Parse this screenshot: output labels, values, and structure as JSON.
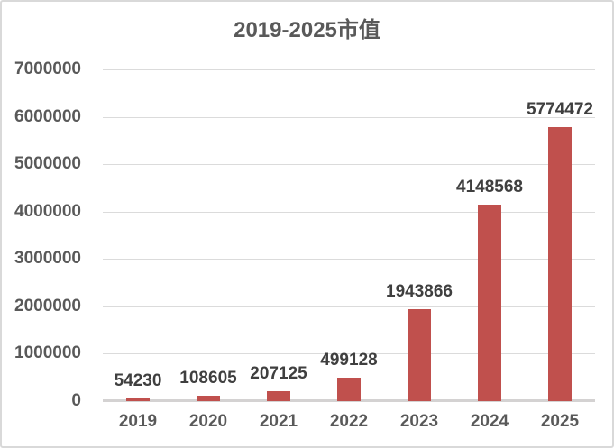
{
  "chart_data": {
    "type": "bar",
    "title": "2019-2025市值",
    "categories": [
      "2019",
      "2020",
      "2021",
      "2022",
      "2023",
      "2024",
      "2025"
    ],
    "values": [
      54230,
      108605,
      207125,
      499128,
      1943866,
      4148568,
      5774472
    ],
    "data_labels": [
      "54230",
      "108605",
      "207125",
      "499128",
      "1943866",
      "4148568",
      "5774472"
    ],
    "xlabel": "",
    "ylabel": "",
    "ylim": [
      0,
      7000000
    ],
    "yticks": [
      0,
      1000000,
      2000000,
      3000000,
      4000000,
      5000000,
      6000000,
      7000000
    ],
    "ytick_labels": [
      "0",
      "1000000",
      "2000000",
      "3000000",
      "4000000",
      "5000000",
      "6000000",
      "7000000"
    ],
    "grid": true,
    "legend": false,
    "colors": {
      "bar": "#C0504D",
      "gridline": "#DBDBDB",
      "axis_line": "#D4D2D2",
      "title_text": "#595959",
      "axis_text": "#595959",
      "data_label_text": "#3F3F3F",
      "background": "#FFFFFF",
      "frame_border": "#D9D9D9"
    }
  }
}
